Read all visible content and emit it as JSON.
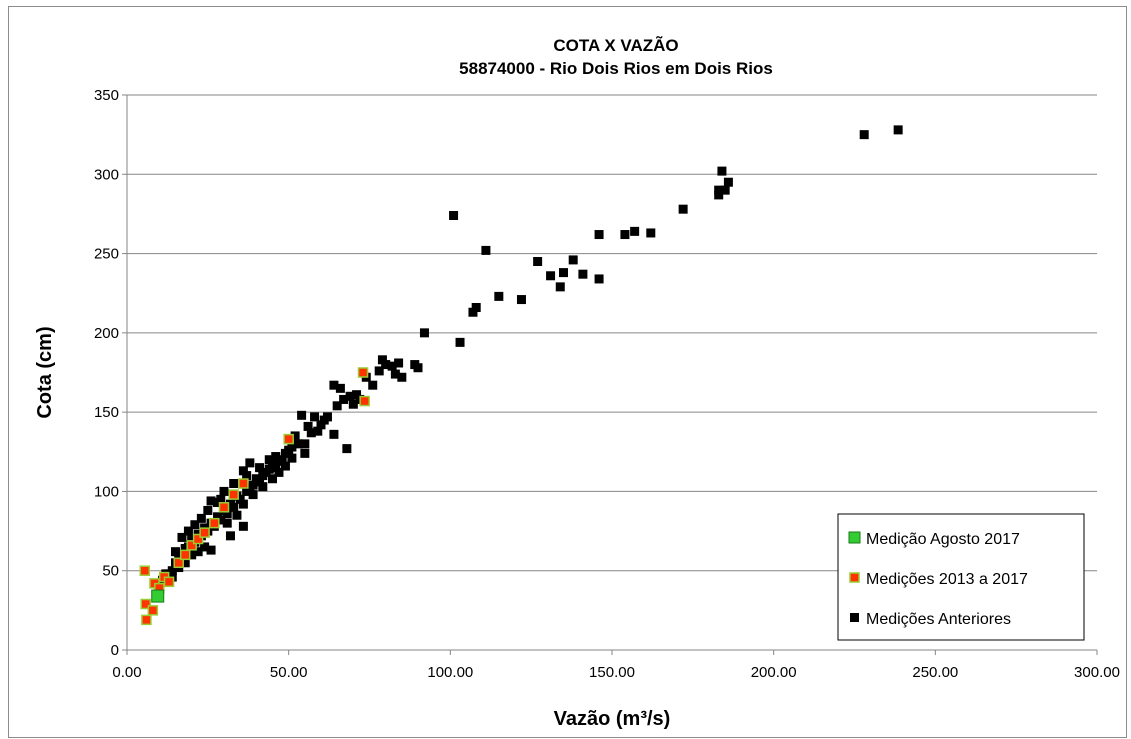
{
  "chart_data": {
    "type": "scatter",
    "title": "COTA X VAZÃO",
    "subtitle": "58874000 - Rio Dois Rios em Dois Rios",
    "xlabel": "Vazão (m³/s)",
    "ylabel": "Cota (cm)",
    "xlim": [
      0,
      300
    ],
    "ylim": [
      0,
      350
    ],
    "xticks": [
      "0.00",
      "50.00",
      "100.00",
      "150.00",
      "200.00",
      "250.00",
      "300.00"
    ],
    "yticks": [
      "0",
      "50",
      "100",
      "150",
      "200",
      "250",
      "300",
      "350"
    ],
    "grid": "horizontal",
    "legend_position": "bottom-right",
    "series": [
      {
        "name": "Medição Agosto 2017",
        "color": "#33cc33",
        "points": [
          [
            9.5,
            34
          ]
        ]
      },
      {
        "name": "Medições 2013 a 2017",
        "color": "#ff3300",
        "points": [
          [
            5.5,
            50
          ],
          [
            5.8,
            29
          ],
          [
            6,
            19
          ],
          [
            8.5,
            42
          ],
          [
            10,
            39
          ],
          [
            11.5,
            46
          ],
          [
            13,
            43
          ],
          [
            16,
            55
          ],
          [
            18,
            60
          ],
          [
            20,
            66
          ],
          [
            22,
            70
          ],
          [
            24,
            74
          ],
          [
            27,
            80
          ],
          [
            30,
            90
          ],
          [
            33,
            98
          ],
          [
            36,
            105
          ],
          [
            50,
            133
          ],
          [
            73,
            175
          ],
          [
            73.5,
            157
          ],
          [
            8,
            25
          ]
        ]
      },
      {
        "name": "Medições Anteriores",
        "color": "#000000",
        "points": [
          [
            238.5,
            328
          ],
          [
            228,
            325
          ],
          [
            184,
            302
          ],
          [
            186,
            295
          ],
          [
            185,
            290
          ],
          [
            183,
            287
          ],
          [
            183,
            290
          ],
          [
            172,
            278
          ],
          [
            162,
            263
          ],
          [
            157,
            264
          ],
          [
            154,
            262
          ],
          [
            146,
            262
          ],
          [
            146,
            234
          ],
          [
            141,
            237
          ],
          [
            138,
            246
          ],
          [
            134,
            229
          ],
          [
            135,
            238
          ],
          [
            131,
            236
          ],
          [
            127,
            245
          ],
          [
            122,
            221
          ],
          [
            115,
            223
          ],
          [
            111,
            252
          ],
          [
            108,
            216
          ],
          [
            107,
            213
          ],
          [
            101,
            274
          ],
          [
            103,
            194
          ],
          [
            92,
            200
          ],
          [
            90,
            178
          ],
          [
            89,
            180
          ],
          [
            85,
            172
          ],
          [
            84,
            181
          ],
          [
            83,
            174
          ],
          [
            82,
            179
          ],
          [
            80,
            180
          ],
          [
            79,
            183
          ],
          [
            78,
            176
          ],
          [
            76,
            167
          ],
          [
            74,
            172
          ],
          [
            71,
            161
          ],
          [
            72,
            158
          ],
          [
            70,
            155
          ],
          [
            68,
            127
          ],
          [
            69,
            160
          ],
          [
            67,
            158
          ],
          [
            66,
            165
          ],
          [
            65,
            154
          ],
          [
            64,
            167
          ],
          [
            64,
            136
          ],
          [
            62,
            147
          ],
          [
            61,
            145
          ],
          [
            60,
            142
          ],
          [
            58,
            147
          ],
          [
            57,
            137
          ],
          [
            59,
            138
          ],
          [
            56,
            141
          ],
          [
            55,
            130
          ],
          [
            54,
            148
          ],
          [
            55,
            124
          ],
          [
            53,
            130
          ],
          [
            52,
            135
          ],
          [
            51,
            128
          ],
          [
            50,
            126
          ],
          [
            49,
            124
          ],
          [
            48,
            120
          ],
          [
            47,
            119
          ],
          [
            46,
            115
          ],
          [
            45,
            118
          ],
          [
            44,
            114
          ],
          [
            43,
            112
          ],
          [
            42,
            110
          ],
          [
            41,
            106
          ],
          [
            40,
            108
          ],
          [
            39,
            104
          ],
          [
            38,
            102
          ],
          [
            37,
            100
          ],
          [
            36,
            113
          ],
          [
            35,
            95
          ],
          [
            34,
            97
          ],
          [
            33,
            90
          ],
          [
            32,
            92
          ],
          [
            31,
            86
          ],
          [
            30,
            88
          ],
          [
            29,
            82
          ],
          [
            28,
            84
          ],
          [
            27,
            78
          ],
          [
            26,
            80
          ],
          [
            25,
            75
          ],
          [
            24,
            77
          ],
          [
            23,
            72
          ],
          [
            22,
            73
          ],
          [
            21,
            68
          ],
          [
            20,
            70
          ],
          [
            19,
            65
          ],
          [
            18,
            64
          ],
          [
            17,
            60
          ],
          [
            16,
            58
          ],
          [
            15,
            55
          ],
          [
            14,
            50
          ],
          [
            13,
            48
          ],
          [
            12,
            46
          ],
          [
            11,
            44
          ],
          [
            10,
            40
          ],
          [
            36,
            78
          ],
          [
            32,
            72
          ],
          [
            26,
            94
          ],
          [
            28,
            93
          ],
          [
            30,
            100
          ],
          [
            33,
            105
          ],
          [
            38,
            118
          ],
          [
            41,
            115
          ],
          [
            44,
            120
          ],
          [
            46,
            122
          ],
          [
            37,
            110
          ],
          [
            29,
            95
          ],
          [
            25,
            88
          ],
          [
            23,
            83
          ],
          [
            21,
            79
          ],
          [
            19,
            75
          ],
          [
            17,
            71
          ],
          [
            15,
            62
          ],
          [
            18,
            55
          ],
          [
            20,
            60
          ],
          [
            22,
            62
          ],
          [
            24,
            65
          ],
          [
            26,
            63
          ],
          [
            31,
            80
          ],
          [
            34,
            85
          ],
          [
            36,
            92
          ],
          [
            39,
            98
          ],
          [
            42,
            103
          ],
          [
            45,
            108
          ],
          [
            47,
            112
          ],
          [
            49,
            116
          ],
          [
            51,
            121
          ],
          [
            13,
            44
          ],
          [
            14,
            46
          ],
          [
            16,
            52
          ],
          [
            12,
            48
          ]
        ]
      }
    ]
  }
}
